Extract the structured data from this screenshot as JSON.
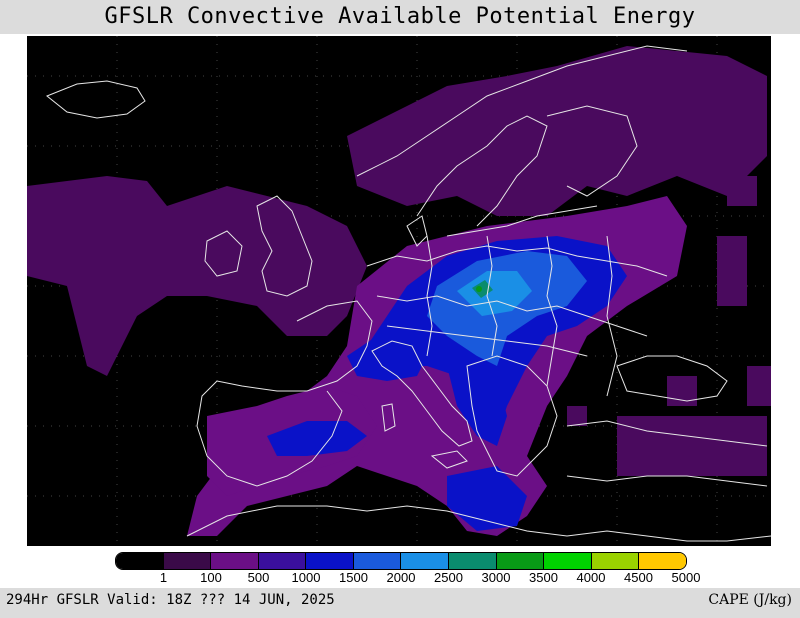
{
  "title": "GFSLR Convective Available Potential Energy",
  "footer": {
    "valid_text": "294Hr GFSLR Valid: 18Z ??? 14 JUN, 2025",
    "units_text": "CAPE (J/kg)"
  },
  "legend": {
    "labels": [
      "1",
      "100",
      "500",
      "1000",
      "1500",
      "2000",
      "2500",
      "3000",
      "3500",
      "4000",
      "4500",
      "5000"
    ],
    "colors": [
      "#000000",
      "#3a0a48",
      "#6b0f86",
      "#3a0f9e",
      "#0a12c8",
      "#1a5adc",
      "#1a8fe6",
      "#0a8c6e",
      "#089a16",
      "#00d200",
      "#9ad200",
      "#ffc800"
    ]
  },
  "map_colors": {
    "background": "#000000",
    "low": "#4a0a5e",
    "mid": "#6b0f86",
    "purple2": "#3a0f9e",
    "blue": "#0a12c8",
    "blue2": "#1a5adc",
    "light_blue": "#1a8fe6",
    "teal": "#0a8c6e",
    "green": "#089a16",
    "borders": "#e6e6e6"
  }
}
